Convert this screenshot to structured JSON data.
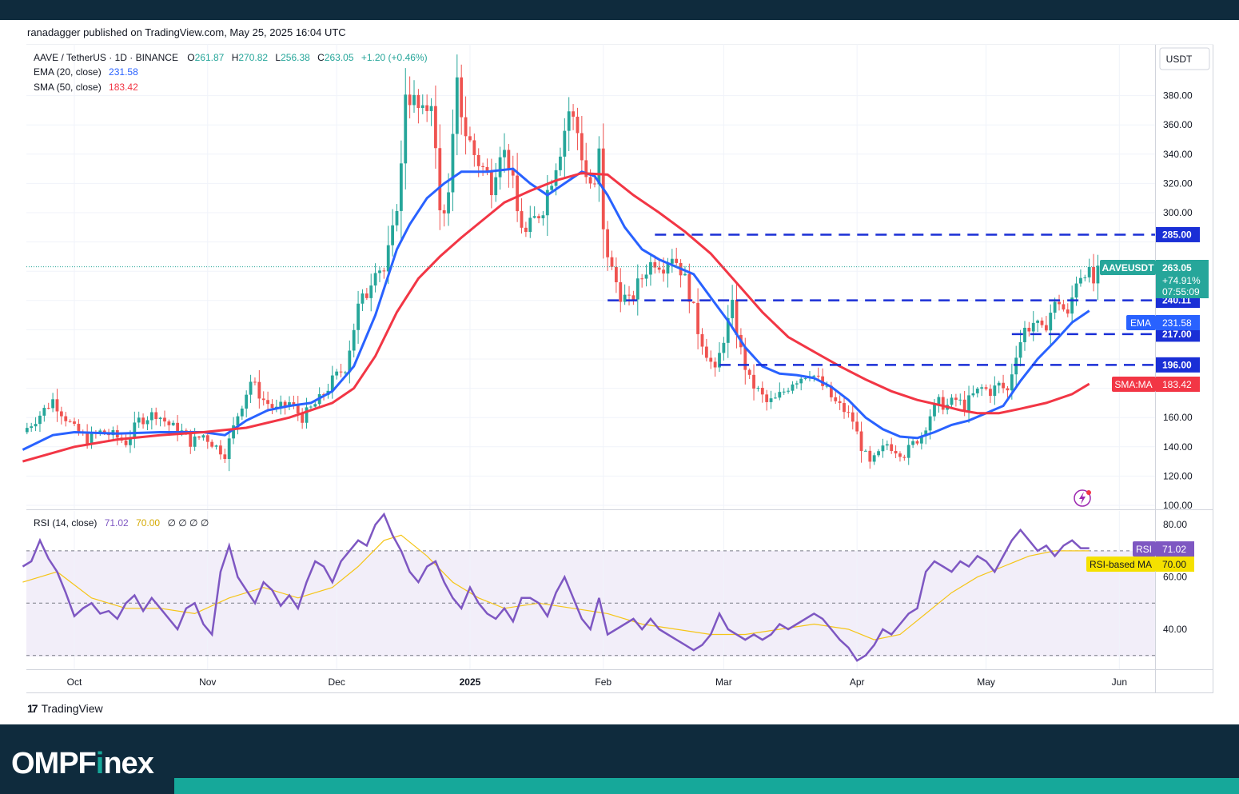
{
  "header": {
    "publisher": "ranadagger published on TradingView.com, May 25, 2025 16:04 UTC"
  },
  "legend": {
    "symbol": "AAVE / TetherUS · 1D · BINANCE",
    "o_label": "O",
    "o_value": "261.87",
    "h_label": "H",
    "h_value": "270.82",
    "l_label": "L",
    "l_value": "256.38",
    "c_label": "C",
    "c_value": "263.05",
    "change": "+1.20 (+0.46%)",
    "ema_label": "EMA (20, close)",
    "ema_value": "231.58",
    "sma_label": "SMA (50, close)",
    "sma_value": "183.42",
    "rsi_label": "RSI (14, close)",
    "rsi_value": "71.02",
    "rsi_ma_value": "70.00",
    "rsi_extra": "∅ ∅ ∅ ∅"
  },
  "currency": "USDT",
  "badges": {
    "symbol_tag": "AAVEUSDT",
    "price": "263.05",
    "change_pct": "+74.91%",
    "countdown": "07:55:09",
    "ema_tag": "EMA",
    "ema_value": "231.58",
    "sma_tag": "SMA:MA",
    "sma_value": "183.42",
    "rsi_tag": "RSI",
    "rsi_value": "71.02",
    "rsi_ma_tag": "RSI-based MA",
    "rsi_ma_value": "70.00"
  },
  "levels": [
    {
      "value": 285,
      "label": "285.00"
    },
    {
      "value": 240.11,
      "label": "240.11"
    },
    {
      "value": 217,
      "label": "217.00"
    },
    {
      "value": 196,
      "label": "196.00"
    }
  ],
  "x_ticks": [
    {
      "day": 0,
      "label": "Oct"
    },
    {
      "day": 31,
      "label": "Nov"
    },
    {
      "day": 61,
      "label": "Dec"
    },
    {
      "day": 92,
      "label": "2025"
    },
    {
      "day": 123,
      "label": "Feb"
    },
    {
      "day": 151,
      "label": "Mar"
    },
    {
      "day": 182,
      "label": "Apr"
    },
    {
      "day": 212,
      "label": "May"
    },
    {
      "day": 243,
      "label": "Jun"
    }
  ],
  "price_ticks": [
    {
      "value": 380,
      "label": "380.00"
    },
    {
      "value": 360,
      "label": "360.00"
    },
    {
      "value": 340,
      "label": "340.00"
    },
    {
      "value": 320,
      "label": "320.00"
    },
    {
      "value": 300,
      "label": "300.00"
    },
    {
      "value": 160,
      "label": "160.00"
    },
    {
      "value": 140,
      "label": "140.00"
    },
    {
      "value": 120,
      "label": "120.00"
    },
    {
      "value": 100,
      "label": "100.00"
    }
  ],
  "rsi_ticks": [
    {
      "value": 80,
      "label": "80.00"
    },
    {
      "value": 60,
      "label": "60.00"
    },
    {
      "value": 40,
      "label": "40.00"
    }
  ],
  "colors": {
    "up": "#26a69a",
    "down": "#ef5350",
    "ema": "#2962ff",
    "sma": "#f23645",
    "rsi": "#7e57c2",
    "rsi_ma": "#f5c518",
    "level": "#1a2fd6",
    "navy": "#0f2b3d",
    "teal": "#16a89a"
  },
  "chart_data": {
    "type": "candlestick",
    "x_axis": "days since Oct 1, 2024",
    "price_range": [
      100,
      400
    ],
    "rsi_range": [
      24,
      86
    ],
    "rsi_levels": [
      70,
      50,
      30
    ],
    "price_anchors": [
      [
        -12,
        150
      ],
      [
        -8,
        162
      ],
      [
        -5,
        172
      ],
      [
        -2,
        160
      ],
      [
        0,
        152
      ],
      [
        3,
        145
      ],
      [
        6,
        150
      ],
      [
        9,
        148
      ],
      [
        12,
        143
      ],
      [
        15,
        158
      ],
      [
        19,
        163
      ],
      [
        22,
        155
      ],
      [
        25,
        150
      ],
      [
        27,
        143
      ],
      [
        30,
        148
      ],
      [
        33,
        140
      ],
      [
        35,
        135
      ],
      [
        38,
        162
      ],
      [
        41,
        185
      ],
      [
        44,
        172
      ],
      [
        47,
        165
      ],
      [
        50,
        170
      ],
      [
        53,
        160
      ],
      [
        57,
        172
      ],
      [
        60,
        185
      ],
      [
        63,
        195
      ],
      [
        66,
        235
      ],
      [
        68,
        245
      ],
      [
        70,
        265
      ],
      [
        72,
        260
      ],
      [
        74,
        285
      ],
      [
        76,
        330
      ],
      [
        77,
        385
      ],
      [
        79,
        375
      ],
      [
        81,
        365
      ],
      [
        83,
        380
      ],
      [
        85,
        300
      ],
      [
        87,
        310
      ],
      [
        89,
        385
      ],
      [
        91,
        355
      ],
      [
        93,
        340
      ],
      [
        95,
        330
      ],
      [
        97,
        320
      ],
      [
        99,
        345
      ],
      [
        101,
        335
      ],
      [
        103,
        300
      ],
      [
        105,
        285
      ],
      [
        107,
        295
      ],
      [
        109,
        305
      ],
      [
        111,
        325
      ],
      [
        113,
        345
      ],
      [
        115,
        370
      ],
      [
        117,
        355
      ],
      [
        119,
        325
      ],
      [
        121,
        315
      ],
      [
        122,
        340
      ],
      [
        123,
        285
      ],
      [
        125,
        260
      ],
      [
        127,
        245
      ],
      [
        129,
        238
      ],
      [
        131,
        250
      ],
      [
        133,
        262
      ],
      [
        135,
        268
      ],
      [
        137,
        265
      ],
      [
        139,
        272
      ],
      [
        141,
        262
      ],
      [
        143,
        245
      ],
      [
        145,
        220
      ],
      [
        147,
        205
      ],
      [
        149,
        190
      ],
      [
        151,
        215
      ],
      [
        153,
        235
      ],
      [
        155,
        205
      ],
      [
        157,
        185
      ],
      [
        159,
        178
      ],
      [
        161,
        170
      ],
      [
        163,
        172
      ],
      [
        165,
        178
      ],
      [
        167,
        185
      ],
      [
        169,
        188
      ],
      [
        171,
        192
      ],
      [
        173,
        185
      ],
      [
        175,
        178
      ],
      [
        177,
        170
      ],
      [
        179,
        165
      ],
      [
        181,
        158
      ],
      [
        183,
        140
      ],
      [
        185,
        128
      ],
      [
        187,
        135
      ],
      [
        189,
        142
      ],
      [
        191,
        138
      ],
      [
        193,
        135
      ],
      [
        195,
        142
      ],
      [
        197,
        148
      ],
      [
        199,
        162
      ],
      [
        201,
        170
      ],
      [
        203,
        168
      ],
      [
        205,
        172
      ],
      [
        207,
        168
      ],
      [
        209,
        175
      ],
      [
        211,
        180
      ],
      [
        213,
        178
      ],
      [
        215,
        182
      ],
      [
        217,
        178
      ],
      [
        219,
        205
      ],
      [
        221,
        220
      ],
      [
        223,
        225
      ],
      [
        225,
        218
      ],
      [
        227,
        232
      ],
      [
        229,
        240
      ],
      [
        231,
        228
      ],
      [
        233,
        255
      ],
      [
        235,
        262
      ],
      [
        237,
        252
      ],
      [
        239,
        263
      ]
    ],
    "ema20": [
      [
        -12,
        138
      ],
      [
        -5,
        148
      ],
      [
        0,
        150
      ],
      [
        10,
        149
      ],
      [
        20,
        150
      ],
      [
        30,
        150
      ],
      [
        35,
        148
      ],
      [
        40,
        158
      ],
      [
        45,
        165
      ],
      [
        50,
        168
      ],
      [
        55,
        170
      ],
      [
        60,
        178
      ],
      [
        65,
        195
      ],
      [
        70,
        230
      ],
      [
        75,
        275
      ],
      [
        78,
        292
      ],
      [
        82,
        310
      ],
      [
        86,
        320
      ],
      [
        90,
        328
      ],
      [
        96,
        328
      ],
      [
        102,
        330
      ],
      [
        106,
        320
      ],
      [
        110,
        312
      ],
      [
        114,
        320
      ],
      [
        118,
        328
      ],
      [
        121,
        325
      ],
      [
        124,
        312
      ],
      [
        128,
        290
      ],
      [
        132,
        275
      ],
      [
        136,
        268
      ],
      [
        140,
        263
      ],
      [
        144,
        258
      ],
      [
        148,
        242
      ],
      [
        152,
        226
      ],
      [
        156,
        208
      ],
      [
        160,
        195
      ],
      [
        164,
        190
      ],
      [
        168,
        189
      ],
      [
        172,
        187
      ],
      [
        176,
        181
      ],
      [
        180,
        172
      ],
      [
        184,
        160
      ],
      [
        188,
        152
      ],
      [
        192,
        147
      ],
      [
        196,
        146
      ],
      [
        200,
        150
      ],
      [
        204,
        155
      ],
      [
        208,
        158
      ],
      [
        212,
        163
      ],
      [
        216,
        168
      ],
      [
        220,
        185
      ],
      [
        224,
        200
      ],
      [
        228,
        212
      ],
      [
        232,
        225
      ],
      [
        236,
        233
      ]
    ],
    "sma50": [
      [
        -12,
        130
      ],
      [
        0,
        140
      ],
      [
        10,
        145
      ],
      [
        20,
        148
      ],
      [
        30,
        150
      ],
      [
        40,
        153
      ],
      [
        50,
        160
      ],
      [
        60,
        170
      ],
      [
        65,
        180
      ],
      [
        70,
        202
      ],
      [
        75,
        232
      ],
      [
        80,
        255
      ],
      [
        85,
        270
      ],
      [
        90,
        283
      ],
      [
        95,
        295
      ],
      [
        100,
        307
      ],
      [
        106,
        315
      ],
      [
        112,
        322
      ],
      [
        118,
        327
      ],
      [
        124,
        326
      ],
      [
        130,
        312
      ],
      [
        136,
        300
      ],
      [
        142,
        287
      ],
      [
        148,
        272
      ],
      [
        154,
        252
      ],
      [
        160,
        232
      ],
      [
        166,
        215
      ],
      [
        172,
        205
      ],
      [
        178,
        195
      ],
      [
        184,
        186
      ],
      [
        190,
        178
      ],
      [
        196,
        172
      ],
      [
        202,
        168
      ],
      [
        206,
        165
      ],
      [
        210,
        163
      ],
      [
        215,
        163
      ],
      [
        220,
        166
      ],
      [
        226,
        170
      ],
      [
        232,
        176
      ],
      [
        236,
        183
      ]
    ],
    "rsi": [
      [
        -12,
        64
      ],
      [
        -10,
        66
      ],
      [
        -8,
        74
      ],
      [
        -6,
        67
      ],
      [
        -4,
        62
      ],
      [
        -2,
        54
      ],
      [
        0,
        45
      ],
      [
        2,
        48
      ],
      [
        4,
        50
      ],
      [
        6,
        46
      ],
      [
        8,
        47
      ],
      [
        10,
        44
      ],
      [
        12,
        50
      ],
      [
        14,
        53
      ],
      [
        16,
        47
      ],
      [
        18,
        52
      ],
      [
        20,
        48
      ],
      [
        22,
        44
      ],
      [
        24,
        40
      ],
      [
        26,
        48
      ],
      [
        28,
        50
      ],
      [
        30,
        42
      ],
      [
        32,
        38
      ],
      [
        34,
        62
      ],
      [
        36,
        72
      ],
      [
        38,
        60
      ],
      [
        40,
        55
      ],
      [
        42,
        50
      ],
      [
        44,
        58
      ],
      [
        46,
        55
      ],
      [
        48,
        49
      ],
      [
        50,
        53
      ],
      [
        52,
        48
      ],
      [
        54,
        58
      ],
      [
        56,
        66
      ],
      [
        58,
        64
      ],
      [
        60,
        58
      ],
      [
        62,
        66
      ],
      [
        64,
        70
      ],
      [
        66,
        74
      ],
      [
        68,
        72
      ],
      [
        70,
        80
      ],
      [
        72,
        84
      ],
      [
        74,
        76
      ],
      [
        76,
        70
      ],
      [
        78,
        62
      ],
      [
        80,
        58
      ],
      [
        82,
        64
      ],
      [
        84,
        66
      ],
      [
        86,
        58
      ],
      [
        88,
        52
      ],
      [
        90,
        48
      ],
      [
        92,
        56
      ],
      [
        94,
        50
      ],
      [
        96,
        46
      ],
      [
        98,
        44
      ],
      [
        100,
        48
      ],
      [
        102,
        43
      ],
      [
        104,
        52
      ],
      [
        106,
        52
      ],
      [
        108,
        50
      ],
      [
        110,
        45
      ],
      [
        112,
        54
      ],
      [
        114,
        60
      ],
      [
        116,
        52
      ],
      [
        118,
        44
      ],
      [
        120,
        40
      ],
      [
        122,
        52
      ],
      [
        124,
        38
      ],
      [
        126,
        40
      ],
      [
        128,
        42
      ],
      [
        130,
        44
      ],
      [
        132,
        40
      ],
      [
        134,
        44
      ],
      [
        136,
        40
      ],
      [
        138,
        38
      ],
      [
        140,
        36
      ],
      [
        142,
        34
      ],
      [
        144,
        32
      ],
      [
        146,
        34
      ],
      [
        148,
        38
      ],
      [
        150,
        46
      ],
      [
        152,
        40
      ],
      [
        154,
        38
      ],
      [
        156,
        36
      ],
      [
        158,
        38
      ],
      [
        160,
        36
      ],
      [
        162,
        38
      ],
      [
        164,
        42
      ],
      [
        166,
        40
      ],
      [
        168,
        42
      ],
      [
        170,
        44
      ],
      [
        172,
        46
      ],
      [
        174,
        44
      ],
      [
        176,
        40
      ],
      [
        178,
        36
      ],
      [
        180,
        33
      ],
      [
        182,
        28
      ],
      [
        184,
        30
      ],
      [
        186,
        34
      ],
      [
        188,
        40
      ],
      [
        190,
        38
      ],
      [
        192,
        42
      ],
      [
        194,
        46
      ],
      [
        196,
        48
      ],
      [
        198,
        62
      ],
      [
        200,
        66
      ],
      [
        202,
        64
      ],
      [
        204,
        62
      ],
      [
        206,
        66
      ],
      [
        208,
        64
      ],
      [
        210,
        68
      ],
      [
        212,
        66
      ],
      [
        214,
        62
      ],
      [
        216,
        68
      ],
      [
        218,
        74
      ],
      [
        220,
        78
      ],
      [
        222,
        74
      ],
      [
        224,
        70
      ],
      [
        226,
        72
      ],
      [
        228,
        68
      ],
      [
        230,
        72
      ],
      [
        232,
        74
      ],
      [
        234,
        71
      ],
      [
        236,
        71
      ]
    ],
    "rsi_ma": [
      [
        -12,
        58
      ],
      [
        -4,
        62
      ],
      [
        4,
        52
      ],
      [
        12,
        48
      ],
      [
        20,
        48
      ],
      [
        28,
        46
      ],
      [
        36,
        52
      ],
      [
        44,
        56
      ],
      [
        52,
        52
      ],
      [
        60,
        56
      ],
      [
        66,
        64
      ],
      [
        72,
        74
      ],
      [
        76,
        76
      ],
      [
        82,
        68
      ],
      [
        88,
        58
      ],
      [
        94,
        52
      ],
      [
        100,
        48
      ],
      [
        108,
        50
      ],
      [
        116,
        48
      ],
      [
        124,
        46
      ],
      [
        132,
        42
      ],
      [
        140,
        40
      ],
      [
        148,
        38
      ],
      [
        156,
        38
      ],
      [
        164,
        40
      ],
      [
        172,
        42
      ],
      [
        180,
        40
      ],
      [
        186,
        36
      ],
      [
        192,
        38
      ],
      [
        198,
        46
      ],
      [
        204,
        54
      ],
      [
        210,
        60
      ],
      [
        216,
        64
      ],
      [
        222,
        68
      ],
      [
        228,
        70
      ],
      [
        234,
        70
      ],
      [
        236,
        70
      ]
    ]
  }
}
